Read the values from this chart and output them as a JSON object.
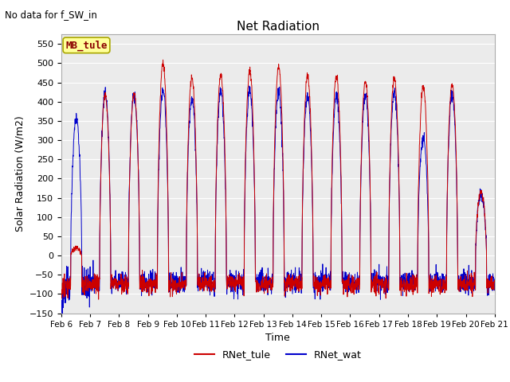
{
  "title": "Net Radiation",
  "suptitle": "No data for f_SW_in",
  "ylabel": "Solar Radiation (W/m2)",
  "xlabel": "Time",
  "ylim": [
    -150,
    575
  ],
  "yticks": [
    -150,
    -100,
    -50,
    0,
    50,
    100,
    150,
    200,
    250,
    300,
    350,
    400,
    450,
    500,
    550
  ],
  "legend_labels": [
    "RNet_tule",
    "RNet_wat"
  ],
  "legend_colors": [
    "#cc0000",
    "#0000cc"
  ],
  "site_label": "MB_tule",
  "site_label_color": "#8b0000",
  "site_box_color": "#ffff99",
  "n_days": 15,
  "start_day": 6,
  "background_color": "#ebebeb",
  "figsize": [
    6.4,
    4.8
  ],
  "dpi": 100
}
